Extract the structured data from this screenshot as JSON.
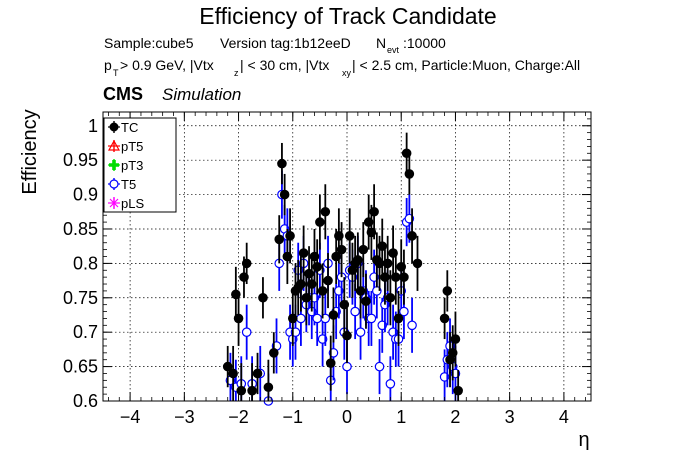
{
  "header": {
    "title": "Efficiency of Track Candidate",
    "line1_sample": "Sample:cube5",
    "line1_version": "Version tag:1b12eeD",
    "line1_nevt_N": "N",
    "line1_nevt_sub": "evt",
    "line1_nevt_val": ":10000",
    "line2_p": "p",
    "line2_T": "T",
    "line2_a": " > 0.9 GeV, |Vtx",
    "line2_z": "z",
    "line2_b": "| < 30 cm, |Vtx",
    "line2_xy": "xy",
    "line2_c": "| < 2.5 cm, Particle:Muon, Charge:All"
  },
  "cms_label": "CMS",
  "simulation_label": "Simulation",
  "colors": {
    "TC": "#000000",
    "pT5": "#ff0000",
    "pT3": "#00dd00",
    "T5": "#0000ff",
    "pLS": "#ff00ff"
  },
  "chart_data": {
    "type": "scatter",
    "xlabel": "η",
    "ylabel": "Efficiency",
    "xlim": [
      -4.5,
      4.5
    ],
    "ylim": [
      0.6,
      1.02
    ],
    "x_ticks": [
      -4,
      -3,
      -2,
      -1,
      0,
      1,
      2,
      3,
      4
    ],
    "x_tick_labels": [
      "−4",
      "−3",
      "−2",
      "−1",
      "0",
      "1",
      "2",
      "3",
      "4"
    ],
    "y_ticks": [
      0.6,
      0.65,
      0.7,
      0.75,
      0.8,
      0.85,
      0.9,
      0.95,
      1.0
    ],
    "y_tick_labels": [
      "0.6",
      "0.65",
      "0.7",
      "0.75",
      "0.8",
      "0.85",
      "0.9",
      "0.95",
      "1"
    ],
    "grid": true,
    "legend_position": "top-left",
    "series": [
      {
        "name": "TC",
        "marker": "filled-circle",
        "x": [
          -2.2,
          -2.1,
          -2.05,
          -2.0,
          -1.95,
          -1.9,
          -1.85,
          -1.75,
          -1.65,
          -1.55,
          -1.45,
          -1.35,
          -1.25,
          -1.2,
          -1.15,
          -1.1,
          -1.05,
          -1.0,
          -0.95,
          -0.9,
          -0.85,
          -0.8,
          -0.75,
          -0.7,
          -0.65,
          -0.6,
          -0.55,
          -0.5,
          -0.45,
          -0.4,
          -0.35,
          -0.3,
          -0.25,
          -0.2,
          -0.15,
          -0.1,
          -0.05,
          0.0,
          0.05,
          0.1,
          0.15,
          0.2,
          0.25,
          0.3,
          0.35,
          0.4,
          0.45,
          0.5,
          0.55,
          0.6,
          0.65,
          0.7,
          0.75,
          0.8,
          0.85,
          0.9,
          0.95,
          1.0,
          1.05,
          1.1,
          1.15,
          1.2,
          1.3,
          1.8,
          1.85,
          1.9,
          1.95,
          2.0,
          2.05
        ],
        "y": [
          0.65,
          0.64,
          0.755,
          0.72,
          0.615,
          0.78,
          0.8,
          0.615,
          0.64,
          0.75,
          0.62,
          0.67,
          0.835,
          0.945,
          0.9,
          0.81,
          0.84,
          0.72,
          0.76,
          0.765,
          0.77,
          0.815,
          0.75,
          0.785,
          0.77,
          0.81,
          0.795,
          0.86,
          0.76,
          0.875,
          0.775,
          0.655,
          0.725,
          0.81,
          0.84,
          0.82,
          0.74,
          0.695,
          0.84,
          0.79,
          0.8,
          0.805,
          0.76,
          0.82,
          0.745,
          0.86,
          0.845,
          0.875,
          0.805,
          0.8,
          0.825,
          0.78,
          0.8,
          0.75,
          0.815,
          0.78,
          0.72,
          0.795,
          0.78,
          0.96,
          0.93,
          0.84,
          0.8,
          0.72,
          0.76,
          0.66,
          0.67,
          0.69,
          0.615
        ],
        "yerr": [
          0.03,
          0.04,
          0.04,
          0.04,
          0.04,
          0.03,
          0.03,
          0.04,
          0.03,
          0.03,
          0.04,
          0.03,
          0.035,
          0.03,
          0.03,
          0.04,
          0.04,
          0.04,
          0.04,
          0.04,
          0.04,
          0.04,
          0.04,
          0.04,
          0.04,
          0.04,
          0.04,
          0.04,
          0.04,
          0.04,
          0.04,
          0.04,
          0.04,
          0.04,
          0.04,
          0.04,
          0.04,
          0.04,
          0.04,
          0.04,
          0.04,
          0.04,
          0.04,
          0.04,
          0.04,
          0.04,
          0.04,
          0.04,
          0.04,
          0.04,
          0.04,
          0.04,
          0.04,
          0.04,
          0.04,
          0.04,
          0.04,
          0.04,
          0.04,
          0.03,
          0.03,
          0.04,
          0.04,
          0.03,
          0.03,
          0.04,
          0.04,
          0.04,
          0.03
        ]
      },
      {
        "name": "T5",
        "marker": "open-circle",
        "x": [
          -2.15,
          -2.05,
          -1.95,
          -1.85,
          -1.75,
          -1.6,
          -1.45,
          -1.3,
          -1.25,
          -1.2,
          -1.15,
          -1.1,
          -1.05,
          -1.0,
          -0.95,
          -0.9,
          -0.85,
          -0.8,
          -0.75,
          -0.7,
          -0.65,
          -0.6,
          -0.55,
          -0.5,
          -0.45,
          -0.4,
          -0.35,
          -0.3,
          -0.25,
          -0.2,
          -0.15,
          -0.1,
          -0.05,
          0.0,
          0.05,
          0.1,
          0.15,
          0.2,
          0.25,
          0.3,
          0.35,
          0.4,
          0.45,
          0.5,
          0.55,
          0.6,
          0.65,
          0.7,
          0.75,
          0.8,
          0.85,
          0.9,
          0.95,
          1.0,
          1.05,
          1.1,
          1.15,
          1.2,
          1.8,
          1.85,
          1.9,
          1.95,
          2.0
        ],
        "y": [
          0.63,
          0.62,
          0.625,
          0.7,
          0.625,
          0.64,
          0.6,
          0.68,
          0.8,
          0.9,
          0.85,
          0.84,
          0.7,
          0.69,
          0.7,
          0.79,
          0.72,
          0.8,
          0.74,
          0.75,
          0.73,
          0.75,
          0.72,
          0.79,
          0.69,
          0.72,
          0.8,
          0.63,
          0.67,
          0.73,
          0.76,
          0.78,
          0.7,
          0.65,
          0.79,
          0.78,
          0.73,
          0.8,
          0.7,
          0.76,
          0.75,
          0.72,
          0.72,
          0.78,
          0.76,
          0.65,
          0.71,
          0.74,
          0.75,
          0.625,
          0.7,
          0.69,
          0.69,
          0.76,
          0.73,
          0.86,
          0.865,
          0.71,
          0.635,
          0.66,
          0.68,
          0.65,
          0.64
        ],
        "yerr": [
          0.04,
          0.04,
          0.04,
          0.04,
          0.04,
          0.04,
          0.04,
          0.04,
          0.04,
          0.035,
          0.035,
          0.04,
          0.04,
          0.04,
          0.04,
          0.04,
          0.04,
          0.04,
          0.04,
          0.04,
          0.04,
          0.04,
          0.04,
          0.04,
          0.04,
          0.04,
          0.04,
          0.04,
          0.04,
          0.04,
          0.04,
          0.04,
          0.04,
          0.04,
          0.04,
          0.04,
          0.04,
          0.04,
          0.04,
          0.04,
          0.04,
          0.04,
          0.04,
          0.04,
          0.04,
          0.04,
          0.04,
          0.04,
          0.04,
          0.04,
          0.04,
          0.04,
          0.04,
          0.04,
          0.04,
          0.035,
          0.035,
          0.04,
          0.04,
          0.04,
          0.04,
          0.04,
          0.04
        ]
      },
      {
        "name": "pT5",
        "marker": "open-triangle",
        "x": [],
        "y": [],
        "yerr": []
      },
      {
        "name": "pT3",
        "marker": "filled-cross",
        "x": [],
        "y": [],
        "yerr": []
      },
      {
        "name": "pLS",
        "marker": "star",
        "x": [],
        "y": [],
        "yerr": []
      }
    ],
    "legend_order": [
      "TC",
      "pT5",
      "pT3",
      "T5",
      "pLS"
    ]
  }
}
